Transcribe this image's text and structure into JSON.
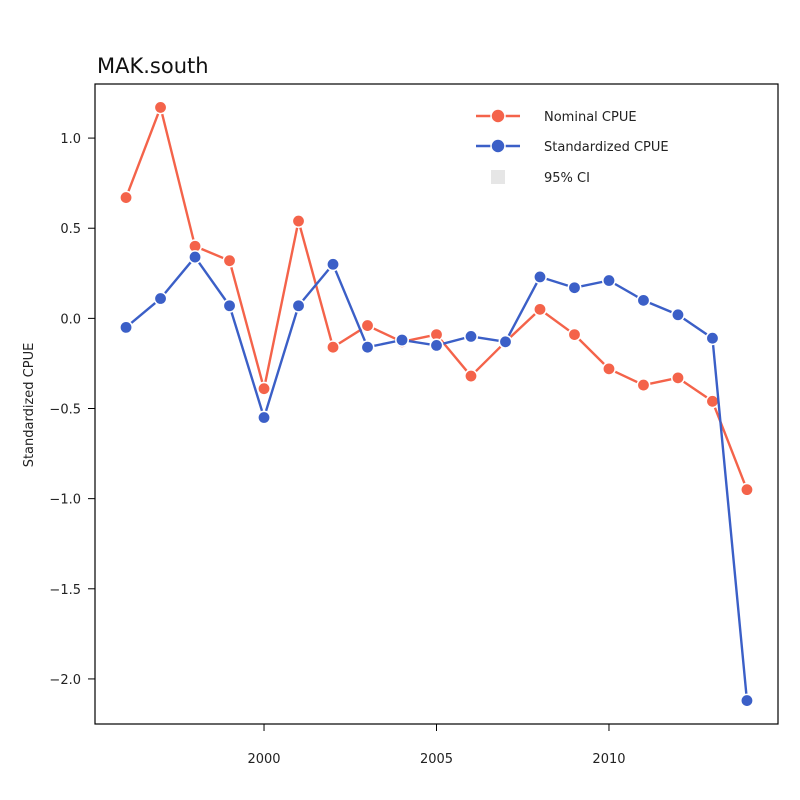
{
  "chart_data": {
    "type": "line",
    "title": "MAK.south",
    "xlabel": "",
    "ylabel": "Standardized CPUE",
    "x": [
      1996,
      1997,
      1998,
      1999,
      2000,
      2001,
      2002,
      2003,
      2004,
      2005,
      2006,
      2007,
      2008,
      2009,
      2010,
      2011,
      2012,
      2013,
      2014
    ],
    "xlim": [
      1995.1,
      2014.9
    ],
    "ylim": [
      -2.25,
      1.3
    ],
    "x_ticks": [
      2000,
      2005,
      2010
    ],
    "y_ticks": [
      1.0,
      0.5,
      0.0,
      -0.5,
      -1.0,
      -1.5,
      -2.0
    ],
    "x_tick_labels": [
      "2000",
      "2005",
      "2010"
    ],
    "y_tick_labels": [
      "1.0",
      "0.5",
      "0.0",
      "−0.5",
      "−1.0",
      "−1.5",
      "−2.0"
    ],
    "series": [
      {
        "name": "Nominal CPUE",
        "color": "#f4634a",
        "values": [
          0.67,
          1.17,
          0.4,
          0.32,
          -0.39,
          0.54,
          -0.16,
          -0.04,
          -0.13,
          -0.09,
          -0.32,
          -0.13,
          0.05,
          -0.09,
          -0.28,
          -0.37,
          -0.33,
          -0.46,
          -0.95
        ]
      },
      {
        "name": "Standardized CPUE",
        "color": "#3b5fc7",
        "values": [
          -0.05,
          0.11,
          0.34,
          0.07,
          -0.55,
          0.07,
          0.3,
          -0.16,
          -0.12,
          -0.15,
          -0.1,
          -0.13,
          0.23,
          0.17,
          0.21,
          0.1,
          0.02,
          -0.11,
          -2.12
        ]
      }
    ],
    "legend": {
      "position": "top-right",
      "entries": [
        "Nominal CPUE",
        "Standardized CPUE",
        "95% CI"
      ],
      "ci_color": "#e6e6e6"
    },
    "grid": false
  }
}
